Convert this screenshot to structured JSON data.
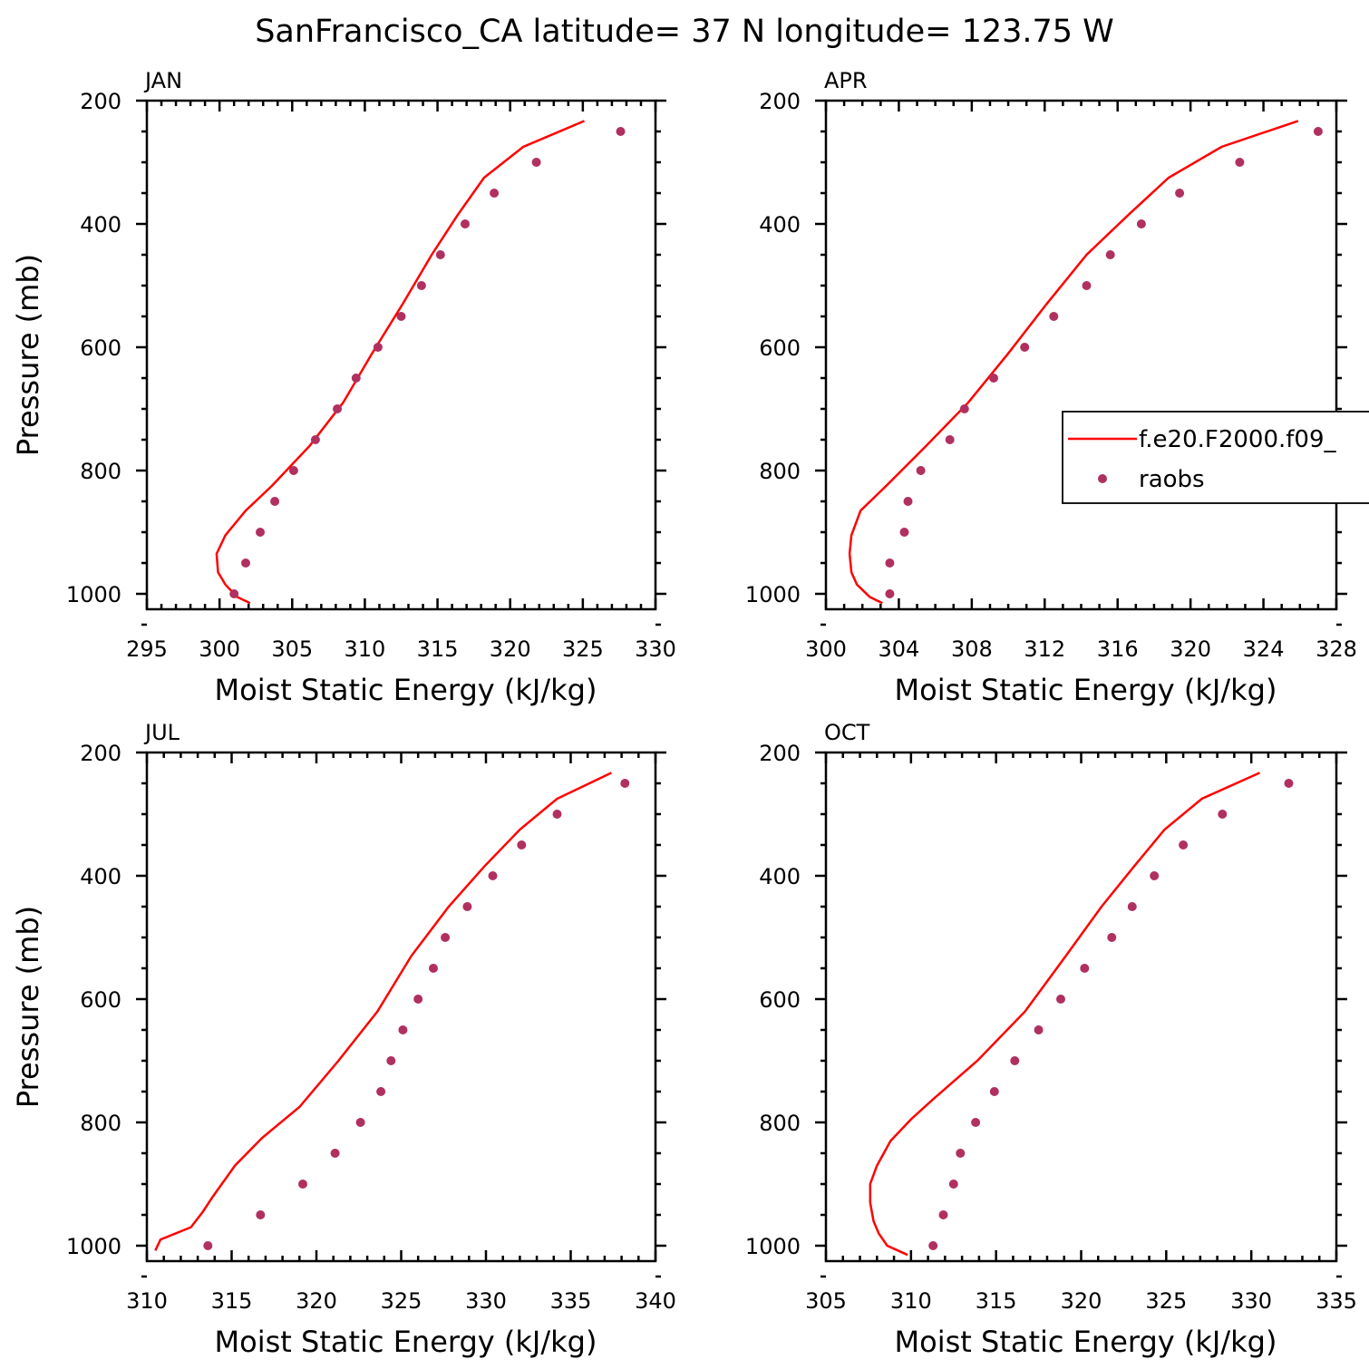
{
  "title": "SanFrancisco_CA  latitude= 37 N longitude= 123.75 W",
  "colors": {
    "model": "#ff0000",
    "obs": "#b03060",
    "frame": "#000000"
  },
  "legend": {
    "placement": "right-middle of APR panel",
    "model_label": "f.e20.F2000.f09_",
    "obs_label": "raobs"
  },
  "chart_data": [
    {
      "panel": "JAN",
      "type": "line+scatter",
      "xlabel": "Moist Static Energy (kJ/kg)",
      "ylabel": "Pressure (mb)",
      "xlim": [
        295,
        330
      ],
      "xticks": [
        295,
        300,
        305,
        310,
        315,
        320,
        325,
        330
      ],
      "x_minor": 1,
      "ylim": [
        1025,
        200
      ],
      "yticks": [
        200,
        400,
        600,
        800,
        1000
      ],
      "y_minor": 50,
      "show_ylabel": true,
      "series": [
        {
          "name": "f.e20.F2000.f09_",
          "kind": "line",
          "x": [
            325.1,
            320.9,
            318.2,
            316.4,
            314.6,
            312.6,
            310.5,
            308.5,
            306.2,
            303.6,
            301.8,
            300.4,
            299.8,
            299.9,
            300.4,
            301.2,
            302.1
          ],
          "y": [
            233,
            275,
            325,
            385,
            450,
            530,
            610,
            690,
            760,
            825,
            865,
            905,
            935,
            965,
            985,
            1005,
            1015
          ]
        },
        {
          "name": "raobs",
          "kind": "scatter",
          "x": [
            327.6,
            321.8,
            318.9,
            316.9,
            315.2,
            313.9,
            312.5,
            310.9,
            309.4,
            308.1,
            306.6,
            305.1,
            303.8,
            302.8,
            301.8,
            301.0
          ],
          "y": [
            250,
            300,
            350,
            400,
            450,
            500,
            550,
            600,
            650,
            700,
            750,
            800,
            850,
            900,
            950,
            1000
          ]
        }
      ]
    },
    {
      "panel": "APR",
      "type": "line+scatter",
      "xlabel": "Moist Static Energy (kJ/kg)",
      "ylabel": "",
      "xlim": [
        300,
        328
      ],
      "xticks": [
        300,
        304,
        308,
        312,
        316,
        320,
        324,
        328
      ],
      "x_minor": 1,
      "ylim": [
        1025,
        200
      ],
      "yticks": [
        200,
        400,
        600,
        800,
        1000
      ],
      "y_minor": 50,
      "show_ylabel": false,
      "series": [
        {
          "name": "f.e20.F2000.f09_",
          "kind": "line",
          "x": [
            325.9,
            321.7,
            318.8,
            316.6,
            314.3,
            312.1,
            310.0,
            307.8,
            305.5,
            303.3,
            301.9,
            301.4,
            301.3,
            301.4,
            301.7,
            302.4,
            303.1
          ],
          "y": [
            233,
            275,
            325,
            385,
            450,
            530,
            610,
            690,
            760,
            825,
            865,
            905,
            935,
            965,
            985,
            1005,
            1015
          ]
        },
        {
          "name": "raobs",
          "kind": "scatter",
          "x": [
            327.0,
            322.7,
            319.4,
            317.3,
            315.6,
            314.3,
            312.5,
            310.9,
            309.2,
            307.6,
            306.8,
            305.2,
            304.5,
            304.3,
            303.5,
            303.5
          ],
          "y": [
            250,
            300,
            350,
            400,
            450,
            500,
            550,
            600,
            650,
            700,
            750,
            800,
            850,
            900,
            950,
            1000
          ]
        }
      ]
    },
    {
      "panel": "JUL",
      "type": "line+scatter",
      "xlabel": "Moist Static Energy (kJ/kg)",
      "ylabel": "Pressure (mb)",
      "xlim": [
        310,
        340
      ],
      "xticks": [
        310,
        315,
        320,
        325,
        330,
        335,
        340
      ],
      "x_minor": 1,
      "ylim": [
        1025,
        200
      ],
      "yticks": [
        200,
        400,
        600,
        800,
        1000
      ],
      "y_minor": 50,
      "show_ylabel": true,
      "series": [
        {
          "name": "f.e20.F2000.f09_",
          "kind": "line",
          "x": [
            337.4,
            334.2,
            332.0,
            329.9,
            327.8,
            325.6,
            323.6,
            321.3,
            319.0,
            316.8,
            315.2,
            313.9,
            313.3,
            312.6,
            310.8,
            310.5
          ],
          "y": [
            233,
            275,
            325,
            385,
            450,
            530,
            620,
            700,
            775,
            825,
            870,
            920,
            945,
            970,
            990,
            1008
          ]
        },
        {
          "name": "raobs",
          "kind": "scatter",
          "x": [
            338.2,
            334.2,
            332.1,
            330.4,
            328.9,
            327.6,
            326.9,
            326.0,
            325.1,
            324.4,
            323.8,
            322.6,
            321.1,
            319.2,
            316.7,
            313.6
          ],
          "y": [
            250,
            300,
            350,
            400,
            450,
            500,
            550,
            600,
            650,
            700,
            750,
            800,
            850,
            900,
            950,
            1000
          ]
        }
      ]
    },
    {
      "panel": "OCT",
      "type": "line+scatter",
      "xlabel": "Moist Static Energy (kJ/kg)",
      "ylabel": "",
      "xlim": [
        305,
        335
      ],
      "xticks": [
        305,
        310,
        315,
        320,
        325,
        330,
        335
      ],
      "x_minor": 1,
      "ylim": [
        1025,
        200
      ],
      "yticks": [
        200,
        400,
        600,
        800,
        1000
      ],
      "y_minor": 50,
      "show_ylabel": false,
      "series": [
        {
          "name": "f.e20.F2000.f09_",
          "kind": "line",
          "x": [
            330.5,
            327.1,
            324.9,
            323.1,
            321.2,
            319.1,
            316.7,
            313.9,
            311.4,
            310.0,
            308.8,
            308.0,
            307.6,
            307.6,
            307.8,
            308.1,
            308.6,
            309.8
          ],
          "y": [
            233,
            275,
            325,
            385,
            450,
            530,
            620,
            700,
            760,
            795,
            830,
            870,
            900,
            930,
            960,
            980,
            1000,
            1015
          ]
        },
        {
          "name": "raobs",
          "kind": "scatter",
          "x": [
            332.2,
            328.3,
            326.0,
            324.3,
            323.0,
            321.8,
            320.2,
            318.8,
            317.5,
            316.1,
            314.9,
            313.8,
            312.9,
            312.5,
            311.9,
            311.3
          ],
          "y": [
            250,
            300,
            350,
            400,
            450,
            500,
            550,
            600,
            650,
            700,
            750,
            800,
            850,
            900,
            950,
            1000
          ]
        }
      ]
    }
  ]
}
